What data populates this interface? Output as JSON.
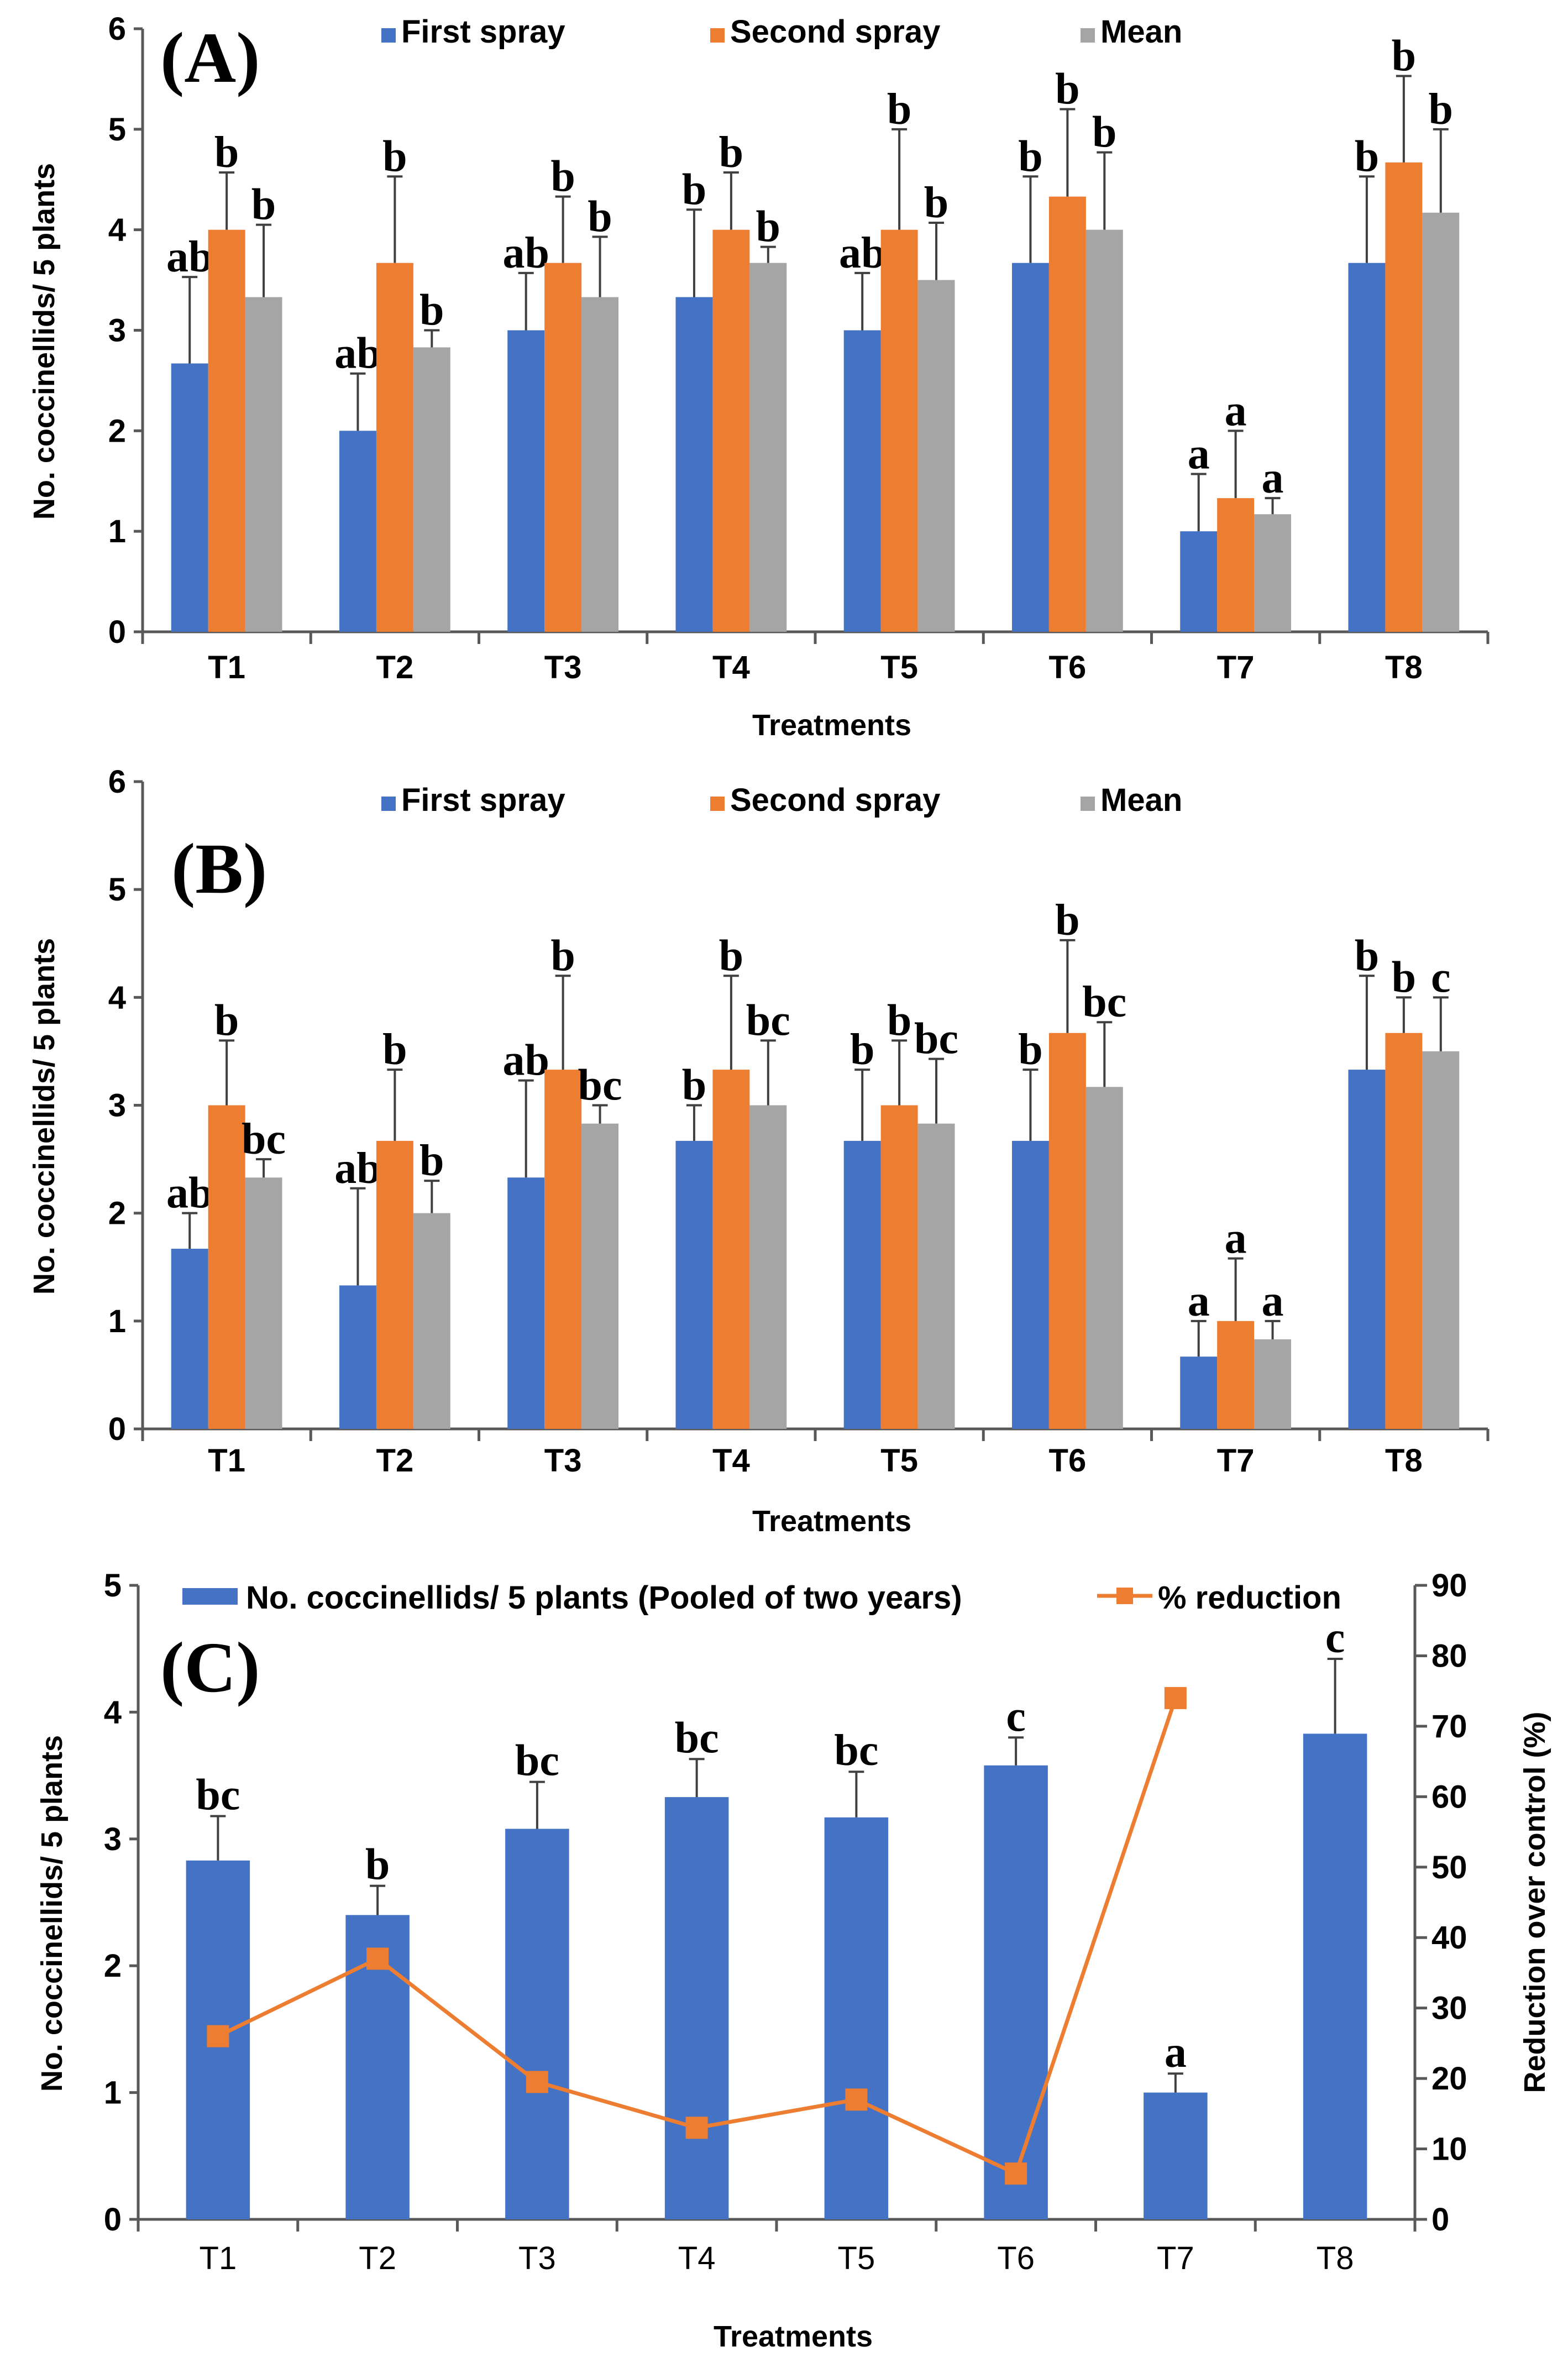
{
  "colors": {
    "first_spray": "#4472C4",
    "second_spray": "#ED7D31",
    "mean": "#A5A5A5",
    "pooled_bar": "#4472C4",
    "reduction_line": "#ED7D31"
  },
  "chart_data": [
    {
      "type": "bar",
      "panel_label": "(A)",
      "categories": [
        "T1",
        "T2",
        "T3",
        "T4",
        "T5",
        "T6",
        "T7",
        "T8"
      ],
      "xlabel": "Treatments",
      "ylabel": "No. coccinellids/ 5 plants",
      "ylim": [
        0,
        6
      ],
      "yticks": [
        0,
        1,
        2,
        3,
        4,
        5,
        6
      ],
      "grid": false,
      "legend_position": "top-center",
      "series": [
        {
          "name": "First spray",
          "values": [
            2.67,
            2.0,
            3.0,
            3.33,
            3.0,
            3.67,
            1.0,
            3.67
          ],
          "error_upper": [
            3.53,
            2.57,
            3.57,
            4.2,
            3.57,
            4.53,
            1.57,
            4.53
          ],
          "letters": [
            "ab",
            "ab",
            "ab",
            "b",
            "ab",
            "b",
            "a",
            "b"
          ]
        },
        {
          "name": "Second spray",
          "values": [
            4.0,
            3.67,
            3.67,
            4.0,
            4.0,
            4.33,
            1.33,
            4.67
          ],
          "error_upper": [
            4.57,
            4.53,
            4.33,
            4.57,
            5.0,
            5.2,
            2.0,
            5.53
          ],
          "letters": [
            "b",
            "b",
            "b",
            "b",
            "b",
            "b",
            "a",
            "b"
          ]
        },
        {
          "name": "Mean",
          "values": [
            3.33,
            2.83,
            3.33,
            3.67,
            3.5,
            4.0,
            1.17,
            4.17
          ],
          "error_upper": [
            4.05,
            3.0,
            3.93,
            3.83,
            4.07,
            4.77,
            1.33,
            5.0
          ],
          "letters": [
            "b",
            "b",
            "b",
            "b",
            "b",
            "b",
            "a",
            "b"
          ]
        }
      ]
    },
    {
      "type": "bar",
      "panel_label": "(B)",
      "categories": [
        "T1",
        "T2",
        "T3",
        "T4",
        "T5",
        "T6",
        "T7",
        "T8"
      ],
      "xlabel": "Treatments",
      "ylabel": "No. coccinellids/ 5 plants",
      "ylim": [
        0,
        6
      ],
      "yticks": [
        0,
        1,
        2,
        3,
        4,
        5,
        6
      ],
      "grid": false,
      "legend_position": "top-center",
      "series": [
        {
          "name": "First spray",
          "values": [
            1.67,
            1.33,
            2.33,
            2.67,
            2.67,
            2.67,
            0.67,
            3.33
          ],
          "error_upper": [
            2.0,
            2.23,
            3.23,
            3.0,
            3.33,
            3.33,
            1.0,
            4.2
          ],
          "letters": [
            "ab",
            "ab",
            "ab",
            "b",
            "b",
            "b",
            "a",
            "b"
          ]
        },
        {
          "name": "Second spray",
          "values": [
            3.0,
            2.67,
            3.33,
            3.33,
            3.0,
            3.67,
            1.0,
            3.67
          ],
          "error_upper": [
            3.6,
            3.33,
            4.2,
            4.2,
            3.6,
            4.53,
            1.58,
            4.0
          ],
          "letters": [
            "b",
            "b",
            "b",
            "b",
            "b",
            "b",
            "a",
            "b"
          ]
        },
        {
          "name": "Mean",
          "values": [
            2.33,
            2.0,
            2.83,
            3.0,
            2.83,
            3.17,
            0.83,
            3.5
          ],
          "error_upper": [
            2.5,
            2.3,
            3.0,
            3.6,
            3.43,
            3.77,
            1.0,
            4.0
          ],
          "letters": [
            "bc",
            "b",
            "bc",
            "bc",
            "bc",
            "bc",
            "a",
            "c"
          ]
        }
      ]
    },
    {
      "type": "bar",
      "panel_label": "(C)",
      "categories": [
        "T1",
        "T2",
        "T3",
        "T4",
        "T5",
        "T6",
        "T7",
        "T8"
      ],
      "xlabel": "Treatments",
      "ylabel": "No. coccinellids/ 5 plants",
      "y2label": "Reduction over control (%)",
      "ylim": [
        0,
        5
      ],
      "yticks": [
        0,
        1,
        2,
        3,
        4,
        5
      ],
      "y2lim": [
        0,
        90
      ],
      "y2ticks": [
        0,
        10,
        20,
        30,
        40,
        50,
        60,
        70,
        80,
        90
      ],
      "grid": false,
      "legend_position": "top",
      "series": [
        {
          "name": "No. coccinellids/ 5 plants (Pooled of two years)",
          "kind": "bar",
          "axis": "left",
          "values": [
            2.83,
            2.4,
            3.08,
            3.33,
            3.17,
            3.58,
            1.0,
            3.83
          ],
          "error_upper": [
            3.18,
            2.63,
            3.45,
            3.63,
            3.53,
            3.8,
            1.15,
            4.42
          ],
          "letters": [
            "bc",
            "b",
            "bc",
            "bc",
            "bc",
            "c",
            "a",
            "c"
          ]
        },
        {
          "name": "% reduction",
          "kind": "line",
          "axis": "right",
          "marker": "square",
          "values": [
            26,
            37,
            19.5,
            13,
            17,
            6.5,
            74,
            null
          ]
        }
      ]
    }
  ]
}
